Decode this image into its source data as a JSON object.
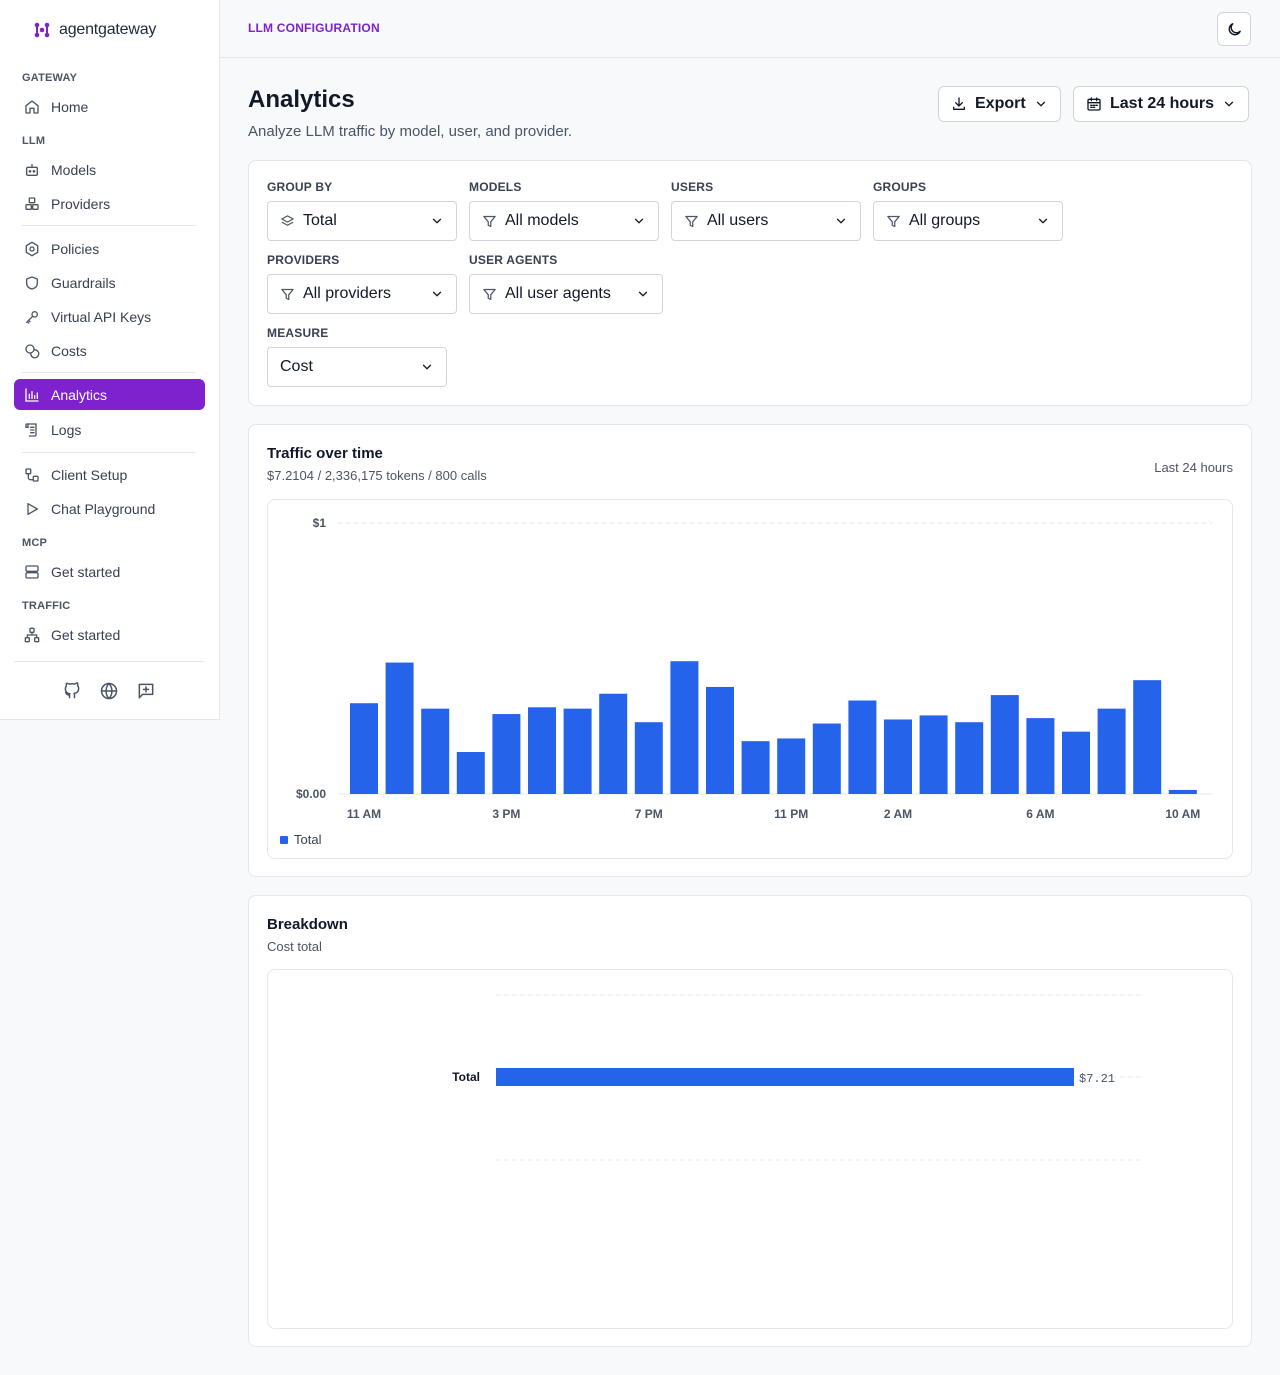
{
  "app": {
    "name": "agentgateway"
  },
  "sidebar": {
    "sections": {
      "gateway": "GATEWAY",
      "llm": "LLM",
      "mcp": "MCP",
      "traffic": "TRAFFIC"
    },
    "items": {
      "home": "Home",
      "models": "Models",
      "providers": "Providers",
      "policies": "Policies",
      "guardrails": "Guardrails",
      "virtual_api_keys": "Virtual API Keys",
      "costs": "Costs",
      "analytics": "Analytics",
      "logs": "Logs",
      "client_setup": "Client Setup",
      "chat_playground": "Chat Playground",
      "mcp_get_started": "Get started",
      "traffic_get_started": "Get started"
    },
    "active": "analytics",
    "footer_icons": [
      "github-icon",
      "globe-icon",
      "feedback-icon"
    ]
  },
  "header": {
    "breadcrumb": "LLM CONFIGURATION",
    "theme_icon": "moon-icon"
  },
  "page": {
    "title": "Analytics",
    "subtitle": "Analyze LLM traffic by model, user, and provider.",
    "export_label": "Export",
    "range_label": "Last 24 hours"
  },
  "filters": {
    "group_by": {
      "label": "GROUP BY",
      "value": "Total"
    },
    "models": {
      "label": "MODELS",
      "value": "All models"
    },
    "users": {
      "label": "USERS",
      "value": "All users"
    },
    "groups": {
      "label": "GROUPS",
      "value": "All groups"
    },
    "providers": {
      "label": "PROVIDERS",
      "value": "All providers"
    },
    "user_agents": {
      "label": "USER AGENTS",
      "value": "All user agents"
    },
    "measure": {
      "label": "MEASURE",
      "value": "Cost"
    }
  },
  "traffic": {
    "title": "Traffic over time",
    "summary": "$7.2104 / 2,336,175 tokens / 800 calls",
    "range": "Last 24 hours"
  },
  "breakdown": {
    "title": "Breakdown",
    "subtitle": "Cost total"
  },
  "colors": {
    "accent": "#7e22ce",
    "bar": "#2563eb"
  },
  "chart_data": [
    {
      "type": "bar",
      "ylim": [
        0,
        1
      ],
      "y_ticks": [
        "$1",
        "$0.00"
      ],
      "x_ticks": [
        "11 AM",
        "3 PM",
        "7 PM",
        "11 PM",
        "2 AM",
        "6 AM",
        "10 AM"
      ],
      "series": [
        {
          "name": "Total",
          "values": [
            0.335,
            0.485,
            0.315,
            0.155,
            0.295,
            0.32,
            0.315,
            0.37,
            0.265,
            0.49,
            0.395,
            0.195,
            0.205,
            0.26,
            0.345,
            0.275,
            0.29,
            0.265,
            0.365,
            0.28,
            0.23,
            0.315,
            0.42,
            0.015
          ]
        }
      ],
      "legend": "bottom-left",
      "grid": true
    },
    {
      "type": "bar",
      "orientation": "horizontal",
      "categories": [
        "Total"
      ],
      "values": [
        7.21
      ],
      "value_labels": [
        "$7.21"
      ],
      "grid": true
    }
  ]
}
